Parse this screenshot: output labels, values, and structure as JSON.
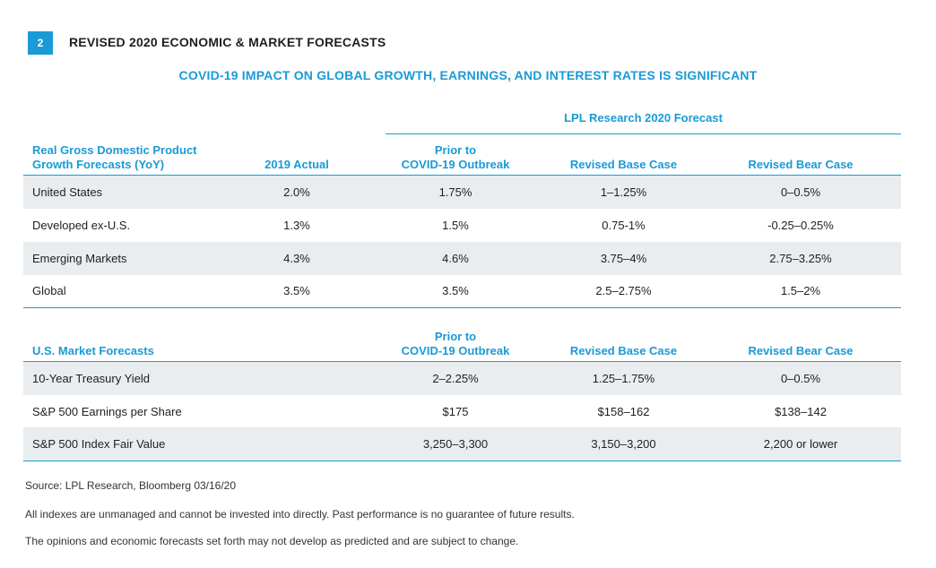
{
  "figure": {
    "number": "2",
    "title": "REVISED 2020 ECONOMIC & MARKET FORECASTS",
    "subtitle": "COVID-19 IMPACT ON GLOBAL GROWTH, EARNINGS, AND INTEREST RATES IS SIGNIFICANT",
    "forecast_group_label": "LPL Research 2020 Forecast"
  },
  "gdp_table": {
    "headers": {
      "label_line1": "Real Gross Domestic Product",
      "label_line2": "Growth Forecasts (YoY)",
      "actual": "2019 Actual",
      "prior_line1": "Prior to",
      "prior_line2": "COVID-19 Outbreak",
      "base": "Revised Base Case",
      "bear": "Revised Bear Case"
    },
    "rows": [
      {
        "label": "United States",
        "actual": "2.0%",
        "prior": "1.75%",
        "base": "1–1.25%",
        "bear": "0–0.5%"
      },
      {
        "label": "Developed ex-U.S.",
        "actual": "1.3%",
        "prior": "1.5%",
        "base": "0.75-1%",
        "bear": "-0.25–0.25%"
      },
      {
        "label": "Emerging Markets",
        "actual": "4.3%",
        "prior": "4.6%",
        "base": "3.75–4%",
        "bear": "2.75–3.25%"
      },
      {
        "label": "Global",
        "actual": "3.5%",
        "prior": "3.5%",
        "base": "2.5–2.75%",
        "bear": "1.5–2%"
      }
    ]
  },
  "market_table": {
    "headers": {
      "label": "U.S. Market Forecasts",
      "prior_line1": "Prior to",
      "prior_line2": "COVID-19 Outbreak",
      "base": "Revised Base Case",
      "bear": "Revised Bear Case"
    },
    "rows": [
      {
        "label": "10-Year Treasury Yield",
        "prior": "2–2.25%",
        "base": "1.25–1.75%",
        "bear": "0–0.5%"
      },
      {
        "label": "S&P 500 Earnings per Share",
        "prior": "$175",
        "base": "$158–162",
        "bear": "$138–142"
      },
      {
        "label": "S&P 500 Index Fair Value",
        "prior": "3,250–3,300",
        "base": "3,150–3,200",
        "bear": "2,200 or lower"
      }
    ]
  },
  "notes": {
    "source": "Source: LPL Research, Bloomberg  03/16/20",
    "disclaimer1": "All indexes are unmanaged and cannot be invested into directly. Past performance is no guarantee of future results.",
    "disclaimer2": "The opinions and economic forecasts set forth may not develop as predicted and are subject to change."
  },
  "colors": {
    "accent": "#1a9ad6",
    "row_shade": "#e9edf0",
    "text": "#1f1f1f"
  }
}
